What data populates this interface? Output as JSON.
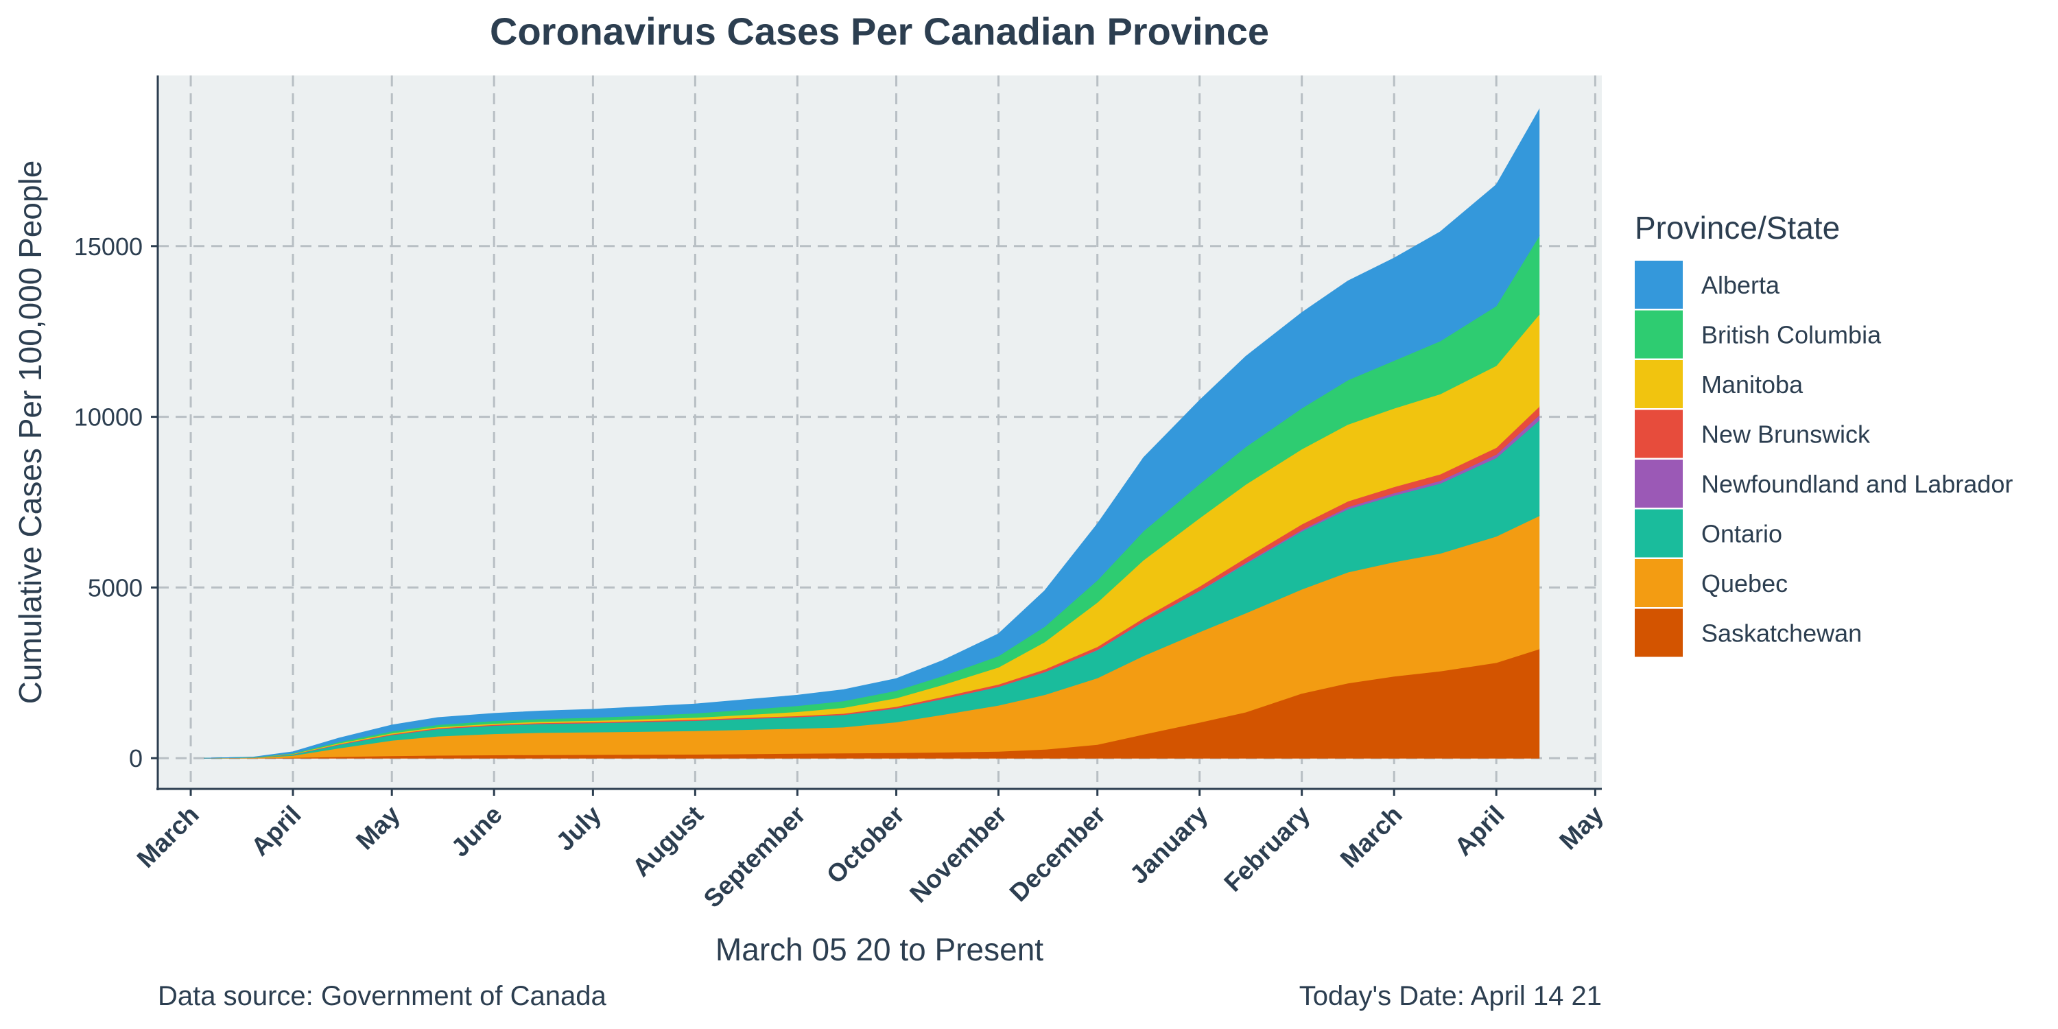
{
  "chart_data": {
    "type": "area",
    "stacked": true,
    "title": "Coronavirus Cases Per Canadian Province",
    "xlabel": "March 05 20 to Present",
    "ylabel": "Cumulative Cases Per 100,000 People",
    "caption_left": "Data source: Government of Canada",
    "caption_right": "Today's Date: April 14 21",
    "legend_title": "Province/State",
    "legend_position": "right",
    "grid": true,
    "xlim": [
      "2020-02-20",
      "2021-05-03"
    ],
    "ylim": [
      -900,
      20000
    ],
    "x_ticks": [
      {
        "date": "2020-03-01",
        "label": "March"
      },
      {
        "date": "2020-04-01",
        "label": "April"
      },
      {
        "date": "2020-05-01",
        "label": "May"
      },
      {
        "date": "2020-06-01",
        "label": "June"
      },
      {
        "date": "2020-07-01",
        "label": "July"
      },
      {
        "date": "2020-08-01",
        "label": "August"
      },
      {
        "date": "2020-09-01",
        "label": "September"
      },
      {
        "date": "2020-10-01",
        "label": "October"
      },
      {
        "date": "2020-11-01",
        "label": "November"
      },
      {
        "date": "2020-12-01",
        "label": "December"
      },
      {
        "date": "2021-01-01",
        "label": "January"
      },
      {
        "date": "2021-02-01",
        "label": "February"
      },
      {
        "date": "2021-03-01",
        "label": "March"
      },
      {
        "date": "2021-04-01",
        "label": "April"
      },
      {
        "date": "2021-05-01",
        "label": "May"
      }
    ],
    "y_ticks": [
      0,
      5000,
      10000,
      15000
    ],
    "x": [
      "2020-03-05",
      "2020-03-20",
      "2020-04-01",
      "2020-04-15",
      "2020-05-01",
      "2020-05-15",
      "2020-06-01",
      "2020-06-15",
      "2020-07-01",
      "2020-07-15",
      "2020-08-01",
      "2020-08-15",
      "2020-09-01",
      "2020-09-15",
      "2020-10-01",
      "2020-10-15",
      "2020-11-01",
      "2020-11-15",
      "2020-12-01",
      "2020-12-15",
      "2021-01-01",
      "2021-01-15",
      "2021-02-01",
      "2021-02-15",
      "2021-03-01",
      "2021-03-15",
      "2021-04-01",
      "2021-04-14"
    ],
    "series": [
      {
        "name": "Saskatchewan",
        "color": "#d35400",
        "values": [
          0,
          5,
          20,
          45,
          70,
          85,
          95,
          100,
          105,
          110,
          115,
          125,
          140,
          150,
          160,
          175,
          200,
          260,
          400,
          700,
          1050,
          1350,
          1900,
          2200,
          2400,
          2550,
          2800,
          3200
        ]
      },
      {
        "name": "Quebec",
        "color": "#f39c12",
        "values": [
          0,
          10,
          60,
          250,
          450,
          560,
          620,
          650,
          660,
          670,
          690,
          710,
          730,
          760,
          900,
          1100,
          1350,
          1600,
          1950,
          2300,
          2650,
          2900,
          3050,
          3250,
          3350,
          3450,
          3700,
          3900
        ]
      },
      {
        "name": "Ontario",
        "color": "#1abc9c",
        "values": [
          0,
          5,
          30,
          100,
          160,
          210,
          240,
          255,
          265,
          280,
          295,
          315,
          335,
          360,
          400,
          460,
          540,
          660,
          820,
          1000,
          1200,
          1450,
          1700,
          1850,
          1950,
          2050,
          2300,
          2800
        ]
      },
      {
        "name": "Newfoundland and Labrador",
        "color": "#9b59b6",
        "values": [
          0,
          1,
          3,
          5,
          6,
          6,
          6,
          6,
          6,
          6,
          6,
          6,
          6,
          6,
          7,
          8,
          9,
          10,
          11,
          12,
          15,
          30,
          45,
          60,
          70,
          80,
          100,
          150
        ]
      },
      {
        "name": "New Brunswick",
        "color": "#e74c3c",
        "values": [
          0,
          1,
          5,
          15,
          20,
          22,
          24,
          25,
          26,
          26,
          27,
          28,
          30,
          35,
          45,
          55,
          65,
          75,
          85,
          95,
          120,
          140,
          160,
          170,
          180,
          190,
          200,
          250
        ]
      },
      {
        "name": "Manitoba",
        "color": "#f1c40f",
        "values": [
          0,
          1,
          10,
          25,
          30,
          32,
          33,
          35,
          40,
          50,
          60,
          80,
          120,
          170,
          250,
          350,
          500,
          800,
          1300,
          1700,
          2000,
          2150,
          2200,
          2250,
          2300,
          2350,
          2400,
          2700
        ]
      },
      {
        "name": "British Columbia",
        "color": "#2ecc71",
        "values": [
          0,
          5,
          20,
          40,
          55,
          65,
          75,
          80,
          90,
          105,
          125,
          150,
          175,
          195,
          220,
          260,
          330,
          450,
          650,
          850,
          1000,
          1100,
          1200,
          1300,
          1400,
          1550,
          1750,
          2300
        ]
      },
      {
        "name": "Alberta",
        "color": "#3498db",
        "values": [
          0,
          5,
          40,
          110,
          180,
          210,
          220,
          230,
          240,
          255,
          270,
          290,
          310,
          330,
          350,
          450,
          650,
          1050,
          1650,
          2150,
          2450,
          2650,
          2800,
          2900,
          3000,
          3200,
          3550,
          3700
        ]
      }
    ],
    "legend_order": [
      "Alberta",
      "British Columbia",
      "Manitoba",
      "New Brunswick",
      "Newfoundland and Labrador",
      "Ontario",
      "Quebec",
      "Saskatchewan"
    ]
  }
}
